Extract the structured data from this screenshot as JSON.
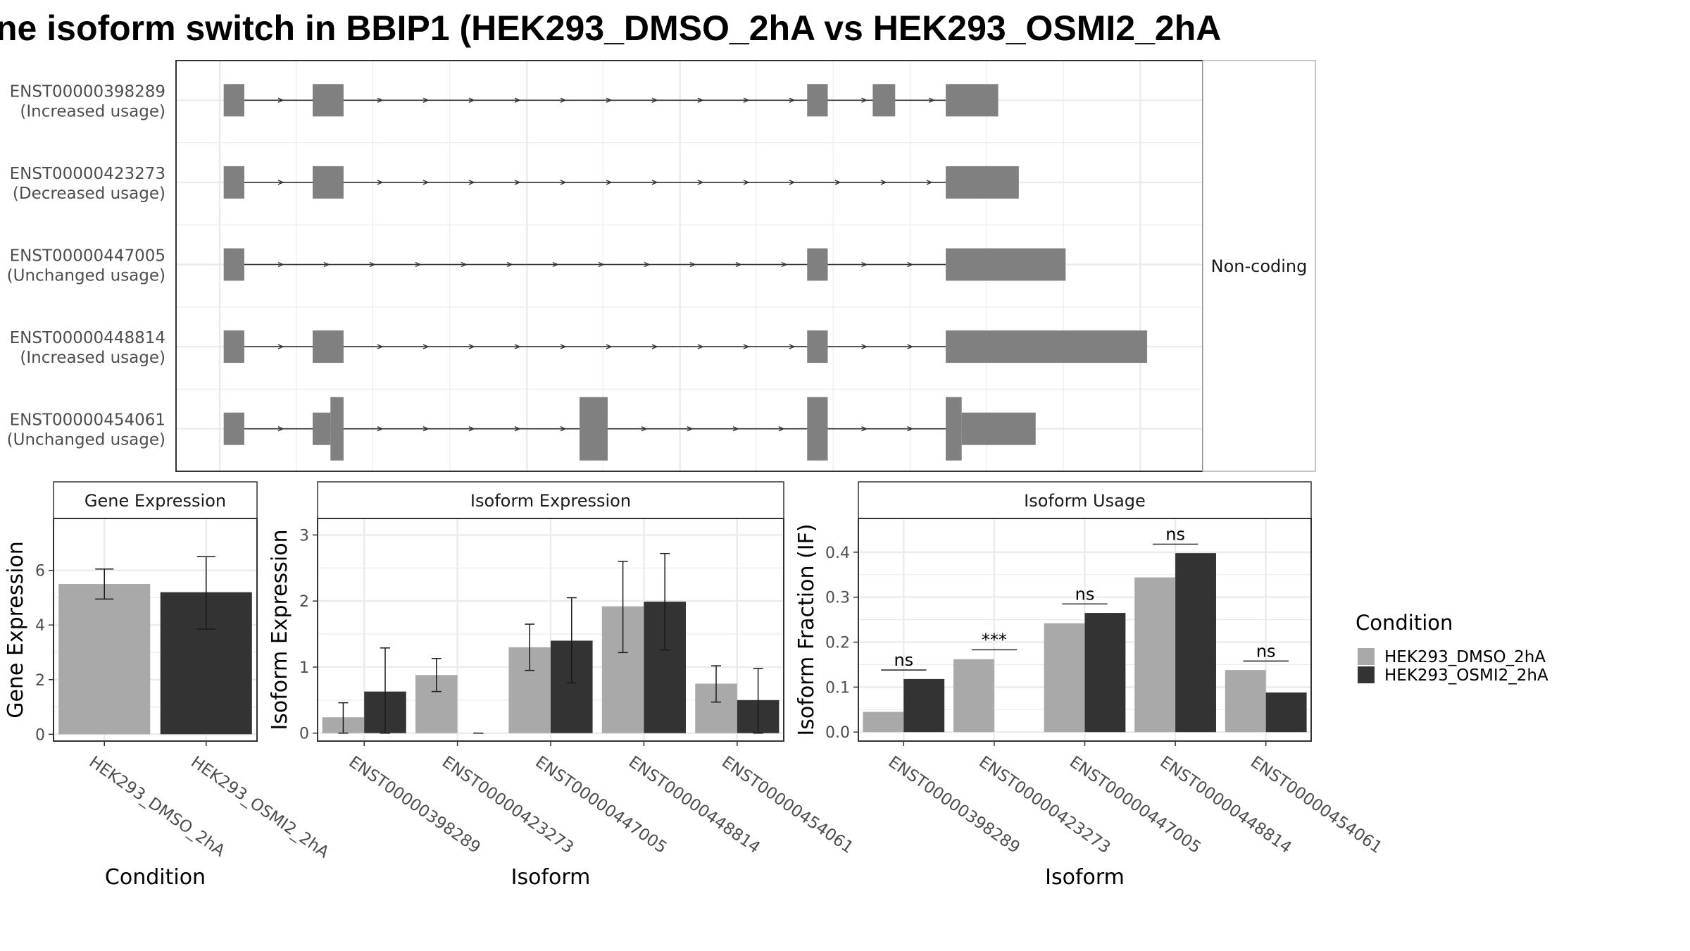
{
  "title": "ne isoform switch in BBIP1 (HEK293_DMSO_2hA vs HEK293_OSMI2_2hA",
  "colors": {
    "dmso": "#a9a9a9",
    "osmi": "#333333",
    "exon": "#808080",
    "grid": "#ebebeb",
    "frame": "#333333",
    "strip_bg": "#ffffff"
  },
  "chart_data": [
    {
      "type": "gene-structure",
      "strip_label": "Non-coding",
      "transcripts": [
        {
          "id": "ENST00000398289",
          "usage": "(Increased usage)",
          "exons": [
            {
              "start": 0.002,
              "end": 0.024,
              "height": "normal"
            },
            {
              "start": 0.097,
              "end": 0.13,
              "height": "normal"
            },
            {
              "start": 0.625,
              "end": 0.647,
              "height": "normal"
            },
            {
              "start": 0.695,
              "end": 0.719,
              "height": "normal"
            },
            {
              "start": 0.773,
              "end": 0.829,
              "height": "normal"
            }
          ]
        },
        {
          "id": "ENST00000423273",
          "usage": "(Decreased usage)",
          "exons": [
            {
              "start": 0.002,
              "end": 0.024,
              "height": "normal"
            },
            {
              "start": 0.097,
              "end": 0.13,
              "height": "normal"
            },
            {
              "start": 0.773,
              "end": 0.851,
              "height": "normal"
            }
          ]
        },
        {
          "id": "ENST00000447005",
          "usage": "(Unchanged usage)",
          "exons": [
            {
              "start": 0.002,
              "end": 0.024,
              "height": "normal"
            },
            {
              "start": 0.625,
              "end": 0.647,
              "height": "normal"
            },
            {
              "start": 0.773,
              "end": 0.901,
              "height": "normal"
            }
          ]
        },
        {
          "id": "ENST00000448814",
          "usage": "(Increased usage)",
          "exons": [
            {
              "start": 0.002,
              "end": 0.024,
              "height": "normal"
            },
            {
              "start": 0.097,
              "end": 0.13,
              "height": "normal"
            },
            {
              "start": 0.625,
              "end": 0.647,
              "height": "normal"
            },
            {
              "start": 0.773,
              "end": 0.988,
              "height": "normal"
            }
          ]
        },
        {
          "id": "ENST00000454061",
          "usage": "(Unchanged usage)",
          "exons": [
            {
              "start": 0.002,
              "end": 0.024,
              "height": "normal"
            },
            {
              "start": 0.097,
              "end": 0.116,
              "height": "normal"
            },
            {
              "start": 0.116,
              "end": 0.13,
              "height": "tall"
            },
            {
              "start": 0.382,
              "end": 0.412,
              "height": "tall"
            },
            {
              "start": 0.625,
              "end": 0.647,
              "height": "tall"
            },
            {
              "start": 0.773,
              "end": 0.79,
              "height": "tall"
            },
            {
              "start": 0.79,
              "end": 0.869,
              "height": "normal"
            }
          ]
        }
      ]
    },
    {
      "type": "bar",
      "strip_label": "Gene Expression",
      "xlabel": "Condition",
      "ylabel": "Gene Expression",
      "ylim": [
        -0.25,
        7.9
      ],
      "yticks": [
        0,
        2,
        4,
        6
      ],
      "categories": [
        "HEK293_DMSO_2hA",
        "HEK293_OSMI2_2hA"
      ],
      "values": [
        5.5,
        5.2
      ],
      "errors": [
        [
          4.95,
          6.05
        ],
        [
          3.85,
          6.5
        ]
      ]
    },
    {
      "type": "bar",
      "strip_label": "Isoform Expression",
      "xlabel": "Isoform",
      "ylabel": "Isoform Expression",
      "ylim": [
        -0.12,
        3.25
      ],
      "yticks": [
        0,
        1,
        2,
        3
      ],
      "categories": [
        "ENST00000398289",
        "ENST00000423273",
        "ENST00000447005",
        "ENST00000448814",
        "ENST00000454061"
      ],
      "series": [
        {
          "name": "HEK293_DMSO_2hA",
          "values": [
            0.24,
            0.88,
            1.3,
            1.92,
            0.75
          ],
          "errors": [
            [
              0.0,
              0.46
            ],
            [
              0.63,
              1.13
            ],
            [
              0.95,
              1.65
            ],
            [
              1.22,
              2.6
            ],
            [
              0.47,
              1.02
            ]
          ]
        },
        {
          "name": "HEK293_OSMI2_2hA",
          "values": [
            0.63,
            0.0,
            1.4,
            1.99,
            0.5
          ],
          "errors": [
            [
              0.0,
              1.29
            ],
            [
              0.0,
              0.0
            ],
            [
              0.76,
              2.05
            ],
            [
              1.26,
              2.72
            ],
            [
              0.0,
              0.98
            ]
          ]
        }
      ]
    },
    {
      "type": "bar",
      "strip_label": "Isoform Usage",
      "xlabel": "Isoform",
      "ylabel": "Isoform Fraction (IF)",
      "ylim": [
        -0.02,
        0.475
      ],
      "yticks": [
        0.0,
        0.1,
        0.2,
        0.3,
        0.4
      ],
      "ytick_labels": [
        "0.0",
        "0.1",
        "0.2",
        "0.3",
        "0.4"
      ],
      "categories": [
        "ENST00000398289",
        "ENST00000423273",
        "ENST00000447005",
        "ENST00000448814",
        "ENST00000454061"
      ],
      "series": [
        {
          "name": "HEK293_DMSO_2hA",
          "values": [
            0.045,
            0.162,
            0.242,
            0.344,
            0.138
          ]
        },
        {
          "name": "HEK293_OSMI2_2hA",
          "values": [
            0.118,
            0.0,
            0.265,
            0.398,
            0.088
          ]
        }
      ],
      "significance": [
        {
          "label": "ns",
          "y": 0.138
        },
        {
          "label": "***",
          "y": 0.183
        },
        {
          "label": "ns",
          "y": 0.285
        },
        {
          "label": "ns",
          "y": 0.418
        },
        {
          "label": "ns",
          "y": 0.158
        }
      ]
    }
  ],
  "legend": {
    "title": "Condition",
    "items": [
      {
        "label": "HEK293_DMSO_2hA",
        "color": "#a9a9a9"
      },
      {
        "label": "HEK293_OSMI2_2hA",
        "color": "#333333"
      }
    ]
  }
}
